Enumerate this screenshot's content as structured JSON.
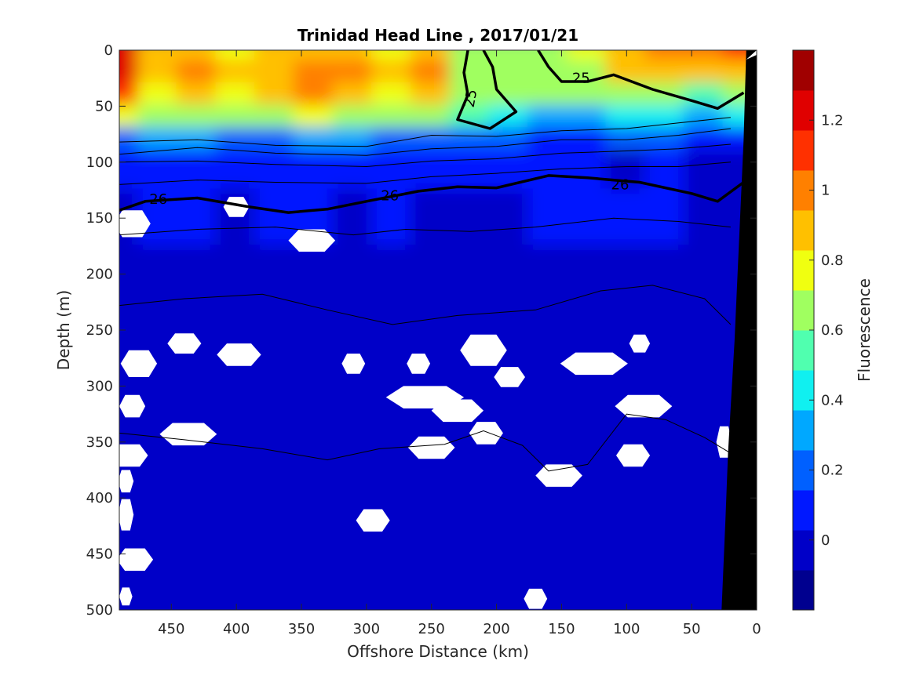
{
  "chart_data": {
    "type": "heatmap",
    "title": "Trinidad Head Line , 2017/01/21",
    "xlabel": "Offshore Distance (km)",
    "ylabel": "Depth (m)",
    "xlim": [
      490,
      0
    ],
    "ylim": [
      0,
      500
    ],
    "x_reversed": true,
    "y_reversed": true,
    "x_ticks": [
      "450",
      "400",
      "350",
      "300",
      "250",
      "200",
      "150",
      "100",
      "50",
      "0"
    ],
    "y_ticks": [
      "0",
      "50",
      "100",
      "150",
      "200",
      "250",
      "300",
      "350",
      "400",
      "450",
      "500"
    ],
    "colorbar": {
      "label": "Fluorescence",
      "range": [
        -0.2,
        1.4
      ],
      "tick_labels": [
        "0",
        "0.2",
        "0.4",
        "0.6",
        "0.8",
        "1",
        "1.2"
      ],
      "colors": [
        "#00008f",
        "#0000c8",
        "#0018ff",
        "#0060ff",
        "#00a8ff",
        "#10f0f0",
        "#50ffaf",
        "#a0ff60",
        "#f0ff10",
        "#ffc000",
        "#ff8000",
        "#ff3000",
        "#e00000",
        "#a00000"
      ]
    },
    "isopycnal_labels": [
      {
        "text": "25",
        "x": 220,
        "depth": 43
      },
      {
        "text": "25",
        "x": 135,
        "depth": 25
      },
      {
        "text": "26",
        "x": 460,
        "depth": 133
      },
      {
        "text": "26",
        "x": 282,
        "depth": 130
      },
      {
        "text": "26",
        "x": 105,
        "depth": 120
      }
    ],
    "fluorescence_field": {
      "x_km": [
        490,
        460,
        430,
        400,
        370,
        340,
        310,
        280,
        250,
        220,
        190,
        160,
        130,
        100,
        70,
        40,
        10
      ],
      "depth_m": [
        0,
        20,
        40,
        60,
        80,
        100,
        150,
        200,
        300,
        400,
        500
      ],
      "values": [
        [
          1.2,
          0.85,
          0.9,
          0.8,
          0.85,
          0.9,
          0.85,
          0.8,
          0.9,
          0.7,
          0.65,
          0.7,
          0.75,
          0.9,
          0.95,
          1.0,
          1.1
        ],
        [
          1.25,
          0.85,
          0.95,
          0.85,
          0.9,
          1.05,
          0.95,
          0.85,
          0.95,
          0.7,
          0.6,
          0.65,
          0.7,
          0.85,
          0.9,
          0.85,
          0.9
        ],
        [
          1.1,
          0.8,
          0.85,
          0.8,
          0.85,
          0.95,
          0.9,
          0.8,
          0.85,
          0.65,
          0.6,
          0.6,
          0.6,
          0.7,
          0.65,
          0.55,
          0.6
        ],
        [
          0.8,
          0.6,
          0.65,
          0.6,
          0.65,
          0.75,
          0.7,
          0.6,
          0.6,
          0.5,
          0.4,
          0.35,
          0.35,
          0.4,
          0.4,
          0.35,
          0.4
        ],
        [
          0.25,
          0.3,
          0.3,
          0.25,
          0.25,
          0.35,
          0.3,
          0.25,
          0.2,
          0.2,
          0.15,
          0.12,
          0.12,
          0.15,
          0.15,
          0.1,
          0.12
        ],
        [
          0.03,
          0.05,
          0.05,
          0.05,
          0.05,
          0.05,
          0.04,
          0.04,
          0.03,
          0.03,
          0.03,
          0.03,
          0.03,
          0.02,
          0.03,
          0.02,
          0.02
        ],
        [
          0.02,
          0.03,
          0.03,
          0.02,
          0.03,
          0.03,
          0.02,
          0.03,
          0.02,
          0.02,
          0.02,
          0.03,
          0.03,
          0.03,
          0.1,
          0.02,
          0.02
        ],
        [
          0.02,
          0.02,
          0.02,
          0.02,
          0.02,
          0.02,
          0.02,
          0.02,
          0.02,
          0.02,
          0.02,
          0.02,
          0.02,
          0.02,
          0.02,
          0.02,
          0.02
        ],
        [
          0.02,
          0.02,
          0.02,
          0.02,
          0.02,
          0.02,
          0.02,
          0.02,
          0.02,
          0.02,
          0.02,
          0.02,
          0.02,
          0.02,
          0.02,
          0.02,
          0.02
        ],
        [
          0.02,
          0.02,
          0.02,
          0.02,
          0.02,
          0.02,
          0.02,
          0.02,
          0.02,
          0.02,
          0.02,
          0.02,
          0.02,
          0.02,
          0.02,
          0.02,
          0.02
        ],
        [
          0.02,
          0.02,
          0.02,
          0.02,
          0.02,
          0.02,
          0.02,
          0.02,
          0.02,
          0.02,
          0.02,
          0.02,
          0.02,
          0.02,
          0.02,
          0.02,
          0.02
        ]
      ]
    },
    "isopycnals_thick": [
      {
        "label": "25",
        "points": [
          [
            210,
            0
          ],
          [
            203,
            15
          ],
          [
            200,
            35
          ],
          [
            185,
            55
          ],
          [
            205,
            70
          ],
          [
            230,
            62
          ],
          [
            222,
            40
          ],
          [
            225,
            20
          ],
          [
            222,
            0
          ]
        ]
      },
      {
        "label": "25",
        "points": [
          [
            168,
            0
          ],
          [
            160,
            15
          ],
          [
            150,
            28
          ],
          [
            130,
            28
          ],
          [
            110,
            22
          ],
          [
            80,
            35
          ],
          [
            50,
            45
          ],
          [
            30,
            52
          ],
          [
            10,
            38
          ]
        ]
      },
      {
        "label": "26",
        "points": [
          [
            490,
            143
          ],
          [
            470,
            135
          ],
          [
            430,
            132
          ],
          [
            390,
            140
          ],
          [
            360,
            145
          ],
          [
            330,
            142
          ],
          [
            300,
            135
          ],
          [
            260,
            126
          ],
          [
            230,
            122
          ],
          [
            200,
            123
          ],
          [
            160,
            112
          ],
          [
            130,
            114
          ],
          [
            90,
            118
          ],
          [
            50,
            128
          ],
          [
            30,
            135
          ],
          [
            10,
            118
          ]
        ]
      }
    ],
    "isopycnals_thin": [
      [
        [
          490,
          82
        ],
        [
          430,
          80
        ],
        [
          370,
          85
        ],
        [
          300,
          86
        ],
        [
          250,
          76
        ],
        [
          200,
          77
        ],
        [
          150,
          72
        ],
        [
          100,
          70
        ],
        [
          60,
          65
        ],
        [
          20,
          60
        ]
      ],
      [
        [
          490,
          93
        ],
        [
          430,
          87
        ],
        [
          370,
          92
        ],
        [
          300,
          94
        ],
        [
          250,
          88
        ],
        [
          200,
          86
        ],
        [
          150,
          80
        ],
        [
          100,
          80
        ],
        [
          60,
          76
        ],
        [
          20,
          70
        ]
      ],
      [
        [
          490,
          100
        ],
        [
          430,
          99
        ],
        [
          370,
          102
        ],
        [
          300,
          104
        ],
        [
          250,
          99
        ],
        [
          200,
          97
        ],
        [
          150,
          92
        ],
        [
          100,
          90
        ],
        [
          60,
          88
        ],
        [
          20,
          84
        ]
      ],
      [
        [
          490,
          120
        ],
        [
          430,
          116
        ],
        [
          370,
          118
        ],
        [
          300,
          119
        ],
        [
          250,
          113
        ],
        [
          200,
          110
        ],
        [
          150,
          106
        ],
        [
          100,
          104
        ],
        [
          60,
          104
        ],
        [
          20,
          100
        ]
      ],
      [
        [
          490,
          165
        ],
        [
          430,
          160
        ],
        [
          370,
          158
        ],
        [
          310,
          165
        ],
        [
          270,
          160
        ],
        [
          220,
          162
        ],
        [
          170,
          158
        ],
        [
          110,
          150
        ],
        [
          60,
          153
        ],
        [
          20,
          158
        ]
      ],
      [
        [
          490,
          228
        ],
        [
          440,
          222
        ],
        [
          380,
          218
        ],
        [
          330,
          232
        ],
        [
          280,
          245
        ],
        [
          230,
          237
        ],
        [
          170,
          232
        ],
        [
          120,
          215
        ],
        [
          80,
          210
        ],
        [
          40,
          222
        ],
        [
          20,
          245
        ]
      ],
      [
        [
          490,
          342
        ],
        [
          440,
          348
        ],
        [
          380,
          356
        ],
        [
          330,
          366
        ],
        [
          290,
          356
        ],
        [
          240,
          352
        ],
        [
          210,
          340
        ],
        [
          180,
          353
        ],
        [
          160,
          376
        ],
        [
          130,
          370
        ],
        [
          100,
          325
        ],
        [
          70,
          330
        ],
        [
          40,
          346
        ],
        [
          20,
          360
        ]
      ]
    ],
    "no_data_regions": [
      {
        "x": 480,
        "depth": 155,
        "rx": 14,
        "rdepth": 12
      },
      {
        "x": 400,
        "depth": 140,
        "rx": 10,
        "rdepth": 9
      },
      {
        "x": 342,
        "depth": 170,
        "rx": 18,
        "rdepth": 10
      },
      {
        "x": 440,
        "depth": 262,
        "rx": 13,
        "rdepth": 9
      },
      {
        "x": 398,
        "depth": 272,
        "rx": 17,
        "rdepth": 10
      },
      {
        "x": 310,
        "depth": 280,
        "rx": 9,
        "rdepth": 9
      },
      {
        "x": 260,
        "depth": 280,
        "rx": 9,
        "rdepth": 9
      },
      {
        "x": 210,
        "depth": 268,
        "rx": 18,
        "rdepth": 14
      },
      {
        "x": 190,
        "depth": 292,
        "rx": 12,
        "rdepth": 9
      },
      {
        "x": 125,
        "depth": 280,
        "rx": 26,
        "rdepth": 10
      },
      {
        "x": 90,
        "depth": 262,
        "rx": 8,
        "rdepth": 8
      },
      {
        "x": 475,
        "depth": 280,
        "rx": 14,
        "rdepth": 12
      },
      {
        "x": 255,
        "depth": 310,
        "rx": 30,
        "rdepth": 10
      },
      {
        "x": 230,
        "depth": 322,
        "rx": 20,
        "rdepth": 10
      },
      {
        "x": 480,
        "depth": 318,
        "rx": 10,
        "rdepth": 10
      },
      {
        "x": 87,
        "depth": 318,
        "rx": 22,
        "rdepth": 10
      },
      {
        "x": 437,
        "depth": 343,
        "rx": 22,
        "rdepth": 10
      },
      {
        "x": 250,
        "depth": 355,
        "rx": 18,
        "rdepth": 10
      },
      {
        "x": 208,
        "depth": 342,
        "rx": 13,
        "rdepth": 10
      },
      {
        "x": 95,
        "depth": 362,
        "rx": 13,
        "rdepth": 10
      },
      {
        "x": 482,
        "depth": 362,
        "rx": 14,
        "rdepth": 10
      },
      {
        "x": 152,
        "depth": 380,
        "rx": 18,
        "rdepth": 10
      },
      {
        "x": 485,
        "depth": 385,
        "rx": 6,
        "rdepth": 10
      },
      {
        "x": 485,
        "depth": 415,
        "rx": 6,
        "rdepth": 14
      },
      {
        "x": 295,
        "depth": 420,
        "rx": 13,
        "rdepth": 10
      },
      {
        "x": 478,
        "depth": 455,
        "rx": 14,
        "rdepth": 10
      },
      {
        "x": 170,
        "depth": 490,
        "rx": 9,
        "rdepth": 9
      },
      {
        "x": 485,
        "depth": 488,
        "rx": 5,
        "rdepth": 8
      },
      {
        "x": 25,
        "depth": 350,
        "rx": 6,
        "rdepth": 14
      }
    ],
    "bathymetry": [
      [
        8,
        0
      ],
      [
        10,
        80
      ],
      [
        17,
        260
      ],
      [
        22,
        360
      ],
      [
        24,
        420
      ],
      [
        27,
        500
      ],
      [
        0,
        500
      ],
      [
        0,
        0
      ]
    ]
  }
}
